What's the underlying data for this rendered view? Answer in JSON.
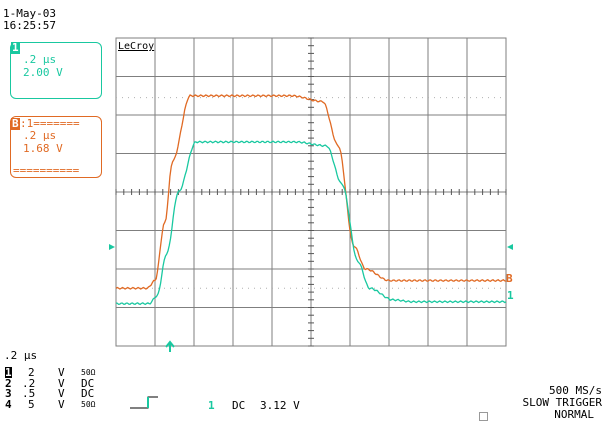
{
  "header": {
    "date": "1-May-03",
    "time": "16:25:57"
  },
  "trace_teal_box": {
    "channel": "1",
    "time_div": ".2 µs",
    "volts_div": "2.00 V"
  },
  "trace_orange_box": {
    "channel": "B",
    "header_suffix": ":1=======",
    "time_div": ".2 µs",
    "volts_div": "1.68 V",
    "footer": "=========="
  },
  "grid_brand": "LeCroy",
  "trace_labels": {
    "orange": "B",
    "teal": "1"
  },
  "timebase": ".2 µs",
  "channels": [
    {
      "num": "1",
      "volts": "2",
      "unit": "V",
      "coupling": "50Ω"
    },
    {
      "num": "2",
      "volts": ".2",
      "unit": "V",
      "coupling": "DC"
    },
    {
      "num": "3",
      "volts": ".5",
      "unit": "V",
      "coupling": "DC"
    },
    {
      "num": "4",
      "volts": "5",
      "unit": "V",
      "coupling": "50Ω"
    }
  ],
  "trigger": {
    "channel": "1",
    "coupling": "DC",
    "level": "3.12 V"
  },
  "acquisition": {
    "sample_rate": "500 MS/s",
    "trigger_mode": "SLOW TRIGGER",
    "status": "NORMAL"
  },
  "colors": {
    "teal": "#19c8a0",
    "orange": "#e06a24",
    "grid": "#7f7f7f",
    "dots": "#b0b0b0"
  },
  "chart_data": {
    "type": "line",
    "series": [
      {
        "color": "#e06a24",
        "x_div": [
          0,
          0.8,
          1.0,
          1.25,
          1.45,
          1.9,
          4.5,
          5.3,
          5.7,
          6.1,
          6.4,
          7.0,
          7.5,
          10
        ],
        "y_div": [
          -2.5,
          -2.5,
          -2.3,
          -0.8,
          0.8,
          2.5,
          2.5,
          2.35,
          1.2,
          -1.4,
          -2.0,
          -2.3,
          -2.3,
          -2.3
        ]
      },
      {
        "color": "#19c8a0",
        "x_div": [
          0,
          0.85,
          1.05,
          1.3,
          1.6,
          2.05,
          4.6,
          5.4,
          5.8,
          6.2,
          6.5,
          7.1,
          7.6,
          10
        ],
        "y_div": [
          -2.9,
          -2.9,
          -2.7,
          -1.6,
          0.0,
          1.3,
          1.3,
          1.2,
          0.2,
          -1.8,
          -2.5,
          -2.8,
          -2.85,
          -2.85
        ]
      }
    ],
    "x_divisions": 10,
    "y_divisions": 8
  }
}
